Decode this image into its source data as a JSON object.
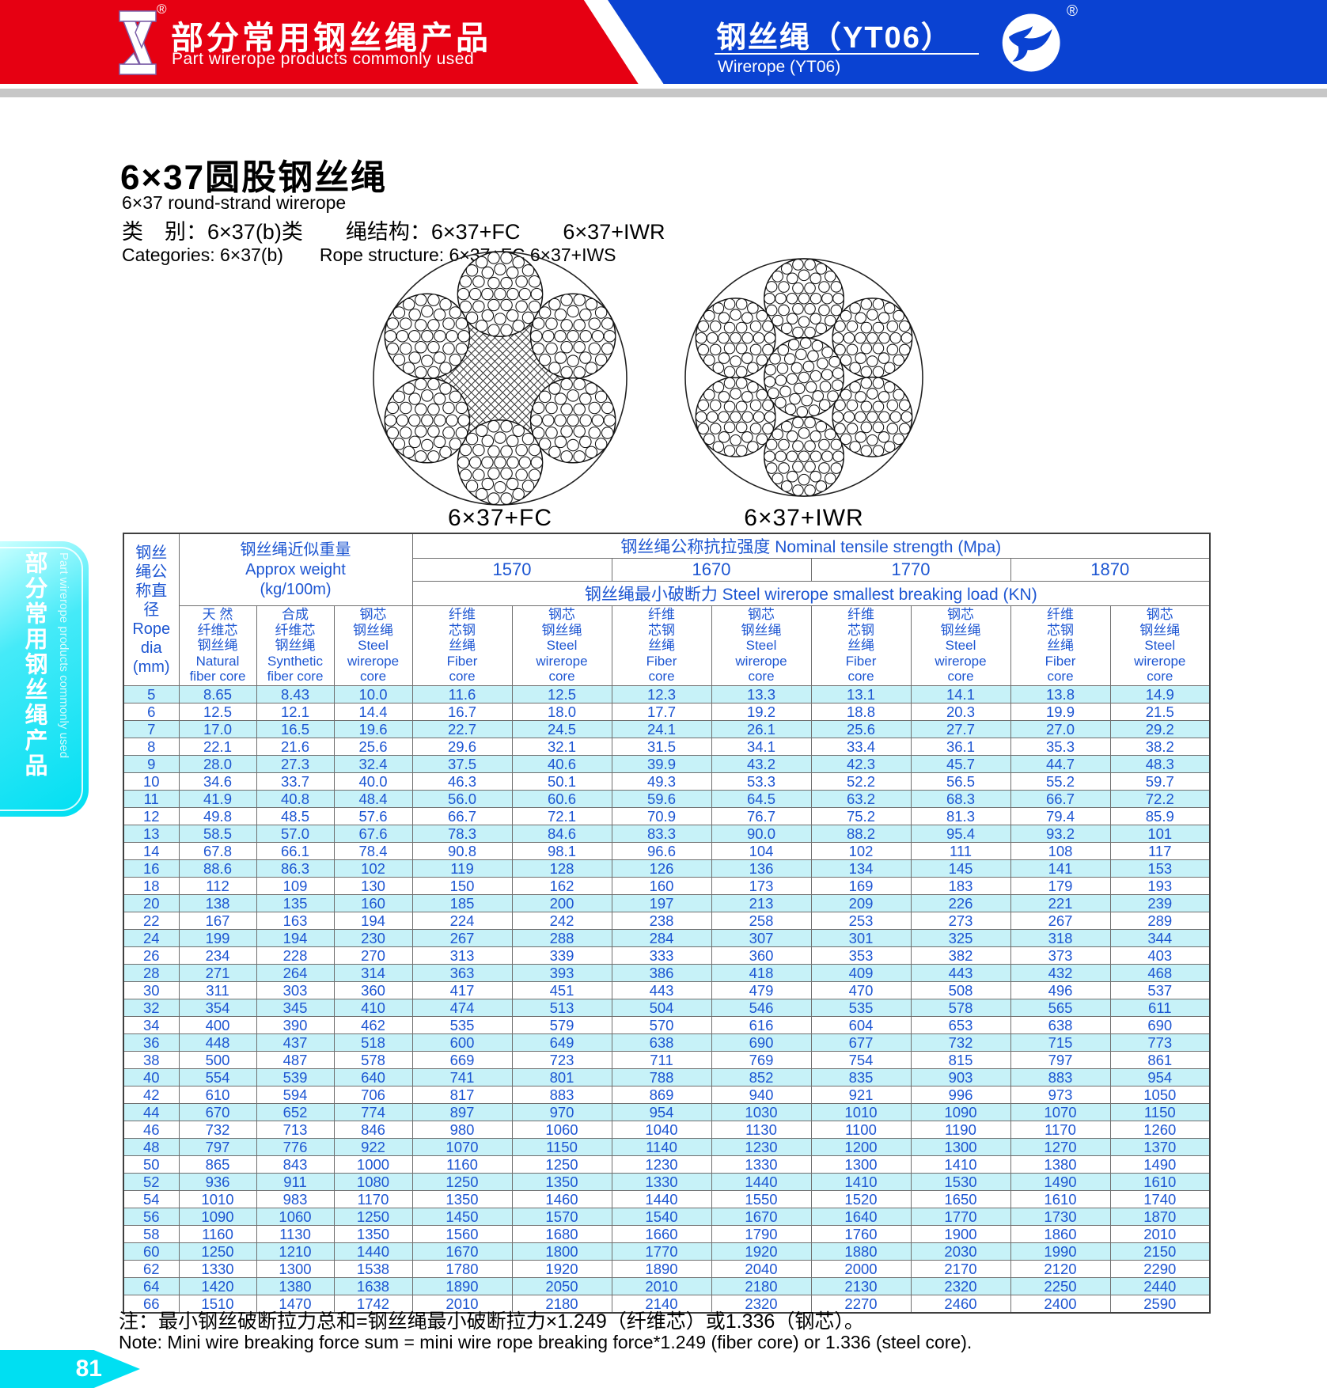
{
  "banner": {
    "left_zh": "部分常用钢丝绳产品",
    "left_en": "Part wirerope products commonly used",
    "right_zh": "钢丝绳（YT06）",
    "right_en": "Wirerope (YT06)",
    "reg_mark": "®",
    "red": "#e60012",
    "blue": "#0a42d2"
  },
  "sidebar": {
    "zh": "部分常用钢丝绳产品",
    "en": "Part wirerope products commonly used"
  },
  "intro": {
    "title_zh": "6×37圆股钢丝绳",
    "title_en": "6×37 round-strand wirerope",
    "class_zh": "类　别：6×37(b)类　　绳结构：6×37+FC　　6×37+IWR",
    "class_en": "Categories: 6×37(b)　　Rope structure: 6×37+FC 6×37+IWS"
  },
  "diagrams": [
    {
      "label": "6×37+FC",
      "core": "fiber"
    },
    {
      "label": "6×37+IWR",
      "core": "steel"
    }
  ],
  "table": {
    "col1": "钢丝\n绳公\n称直\n径\nRope\ndia\n(mm)",
    "weight": "钢丝绳近似重量\nApprox weight\n(kg/100m)",
    "strength": "钢丝绳公称抗拉强度 Nominal tensile strength (Mpa)",
    "breaking": "钢丝绳最小破断力 Steel wirerope smallest breaking load  (KN)",
    "strengths": [
      "1570",
      "1670",
      "1770",
      "1870"
    ],
    "sub": [
      "天  然\n纤维芯\n钢丝绳\nNatural\nfiber core",
      "合成\n纤维芯\n钢丝绳\nSynthetic\nfiber core",
      "钢芯\n钢丝绳\nSteel\nwirerope\ncore",
      "纤维\n芯钢\n丝绳\nFiber\ncore",
      "钢芯\n钢丝绳\nSteel\nwirerope\ncore",
      "纤维\n芯钢\n丝绳\nFiber\ncore",
      "钢芯\n钢丝绳\nSteel\nwirerope\ncore",
      "纤维\n芯钢\n丝绳\nFiber\ncore",
      "钢芯\n钢丝绳\nSteel\nwirerope\ncore",
      "纤维\n芯钢\n丝绳\nFiber\ncore",
      "钢芯\n钢丝绳\nSteel\nwirerope\ncore"
    ],
    "rows": [
      [
        "5",
        "8.65",
        "8.43",
        "10.0",
        "11.6",
        "12.5",
        "12.3",
        "13.3",
        "13.1",
        "14.1",
        "13.8",
        "14.9"
      ],
      [
        "6",
        "12.5",
        "12.1",
        "14.4",
        "16.7",
        "18.0",
        "17.7",
        "19.2",
        "18.8",
        "20.3",
        "19.9",
        "21.5"
      ],
      [
        "7",
        "17.0",
        "16.5",
        "19.6",
        "22.7",
        "24.5",
        "24.1",
        "26.1",
        "25.6",
        "27.7",
        "27.0",
        "29.2"
      ],
      [
        "8",
        "22.1",
        "21.6",
        "25.6",
        "29.6",
        "32.1",
        "31.5",
        "34.1",
        "33.4",
        "36.1",
        "35.3",
        "38.2"
      ],
      [
        "9",
        "28.0",
        "27.3",
        "32.4",
        "37.5",
        "40.6",
        "39.9",
        "43.2",
        "42.3",
        "45.7",
        "44.7",
        "48.3"
      ],
      [
        "10",
        "34.6",
        "33.7",
        "40.0",
        "46.3",
        "50.1",
        "49.3",
        "53.3",
        "52.2",
        "56.5",
        "55.2",
        "59.7"
      ],
      [
        "11",
        "41.9",
        "40.8",
        "48.4",
        "56.0",
        "60.6",
        "59.6",
        "64.5",
        "63.2",
        "68.3",
        "66.7",
        "72.2"
      ],
      [
        "12",
        "49.8",
        "48.5",
        "57.6",
        "66.7",
        "72.1",
        "70.9",
        "76.7",
        "75.2",
        "81.3",
        "79.4",
        "85.9"
      ],
      [
        "13",
        "58.5",
        "57.0",
        "67.6",
        "78.3",
        "84.6",
        "83.3",
        "90.0",
        "88.2",
        "95.4",
        "93.2",
        "101"
      ],
      [
        "14",
        "67.8",
        "66.1",
        "78.4",
        "90.8",
        "98.1",
        "96.6",
        "104",
        "102",
        "111",
        "108",
        "117"
      ],
      [
        "16",
        "88.6",
        "86.3",
        "102",
        "119",
        "128",
        "126",
        "136",
        "134",
        "145",
        "141",
        "153"
      ],
      [
        "18",
        "112",
        "109",
        "130",
        "150",
        "162",
        "160",
        "173",
        "169",
        "183",
        "179",
        "193"
      ],
      [
        "20",
        "138",
        "135",
        "160",
        "185",
        "200",
        "197",
        "213",
        "209",
        "226",
        "221",
        "239"
      ],
      [
        "22",
        "167",
        "163",
        "194",
        "224",
        "242",
        "238",
        "258",
        "253",
        "273",
        "267",
        "289"
      ],
      [
        "24",
        "199",
        "194",
        "230",
        "267",
        "288",
        "284",
        "307",
        "301",
        "325",
        "318",
        "344"
      ],
      [
        "26",
        "234",
        "228",
        "270",
        "313",
        "339",
        "333",
        "360",
        "353",
        "382",
        "373",
        "403"
      ],
      [
        "28",
        "271",
        "264",
        "314",
        "363",
        "393",
        "386",
        "418",
        "409",
        "443",
        "432",
        "468"
      ],
      [
        "30",
        "311",
        "303",
        "360",
        "417",
        "451",
        "443",
        "479",
        "470",
        "508",
        "496",
        "537"
      ],
      [
        "32",
        "354",
        "345",
        "410",
        "474",
        "513",
        "504",
        "546",
        "535",
        "578",
        "565",
        "611"
      ],
      [
        "34",
        "400",
        "390",
        "462",
        "535",
        "579",
        "570",
        "616",
        "604",
        "653",
        "638",
        "690"
      ],
      [
        "36",
        "448",
        "437",
        "518",
        "600",
        "649",
        "638",
        "690",
        "677",
        "732",
        "715",
        "773"
      ],
      [
        "38",
        "500",
        "487",
        "578",
        "669",
        "723",
        "711",
        "769",
        "754",
        "815",
        "797",
        "861"
      ],
      [
        "40",
        "554",
        "539",
        "640",
        "741",
        "801",
        "788",
        "852",
        "835",
        "903",
        "883",
        "954"
      ],
      [
        "42",
        "610",
        "594",
        "706",
        "817",
        "883",
        "869",
        "940",
        "921",
        "996",
        "973",
        "1050"
      ],
      [
        "44",
        "670",
        "652",
        "774",
        "897",
        "970",
        "954",
        "1030",
        "1010",
        "1090",
        "1070",
        "1150"
      ],
      [
        "46",
        "732",
        "713",
        "846",
        "980",
        "1060",
        "1040",
        "1130",
        "1100",
        "1190",
        "1170",
        "1260"
      ],
      [
        "48",
        "797",
        "776",
        "922",
        "1070",
        "1150",
        "1140",
        "1230",
        "1200",
        "1300",
        "1270",
        "1370"
      ],
      [
        "50",
        "865",
        "843",
        "1000",
        "1160",
        "1250",
        "1230",
        "1330",
        "1300",
        "1410",
        "1380",
        "1490"
      ],
      [
        "52",
        "936",
        "911",
        "1080",
        "1250",
        "1350",
        "1330",
        "1440",
        "1410",
        "1530",
        "1490",
        "1610"
      ],
      [
        "54",
        "1010",
        "983",
        "1170",
        "1350",
        "1460",
        "1440",
        "1550",
        "1520",
        "1650",
        "1610",
        "1740"
      ],
      [
        "56",
        "1090",
        "1060",
        "1250",
        "1450",
        "1570",
        "1540",
        "1670",
        "1640",
        "1770",
        "1730",
        "1870"
      ],
      [
        "58",
        "1160",
        "1130",
        "1350",
        "1560",
        "1680",
        "1660",
        "1790",
        "1760",
        "1900",
        "1860",
        "2010"
      ],
      [
        "60",
        "1250",
        "1210",
        "1440",
        "1670",
        "1800",
        "1770",
        "1920",
        "1880",
        "2030",
        "1990",
        "2150"
      ],
      [
        "62",
        "1330",
        "1300",
        "1538",
        "1780",
        "1920",
        "1890",
        "2040",
        "2000",
        "2170",
        "2120",
        "2290"
      ],
      [
        "64",
        "1420",
        "1380",
        "1638",
        "1890",
        "2050",
        "2010",
        "2180",
        "2130",
        "2320",
        "2250",
        "2440"
      ],
      [
        "66",
        "1510",
        "1470",
        "1742",
        "2010",
        "2180",
        "2140",
        "2320",
        "2270",
        "2460",
        "2400",
        "2590"
      ]
    ]
  },
  "note_zh": "注：最小钢丝破断拉力总和=钢丝绳最小破断拉力×1.249（纤维芯）或1.336（钢芯）。",
  "note_en": "Note: Mini wire breaking force sum = mini wire rope breaking force*1.249 (fiber core) or  1.336 (steel core).",
  "page_number": "81",
  "colors": {
    "table_text": "#1d56d2",
    "row_alt": "#c7f2f8",
    "tab_cyan": "#00dff2",
    "banner_red": "#e60012",
    "banner_blue": "#0a42d2"
  }
}
